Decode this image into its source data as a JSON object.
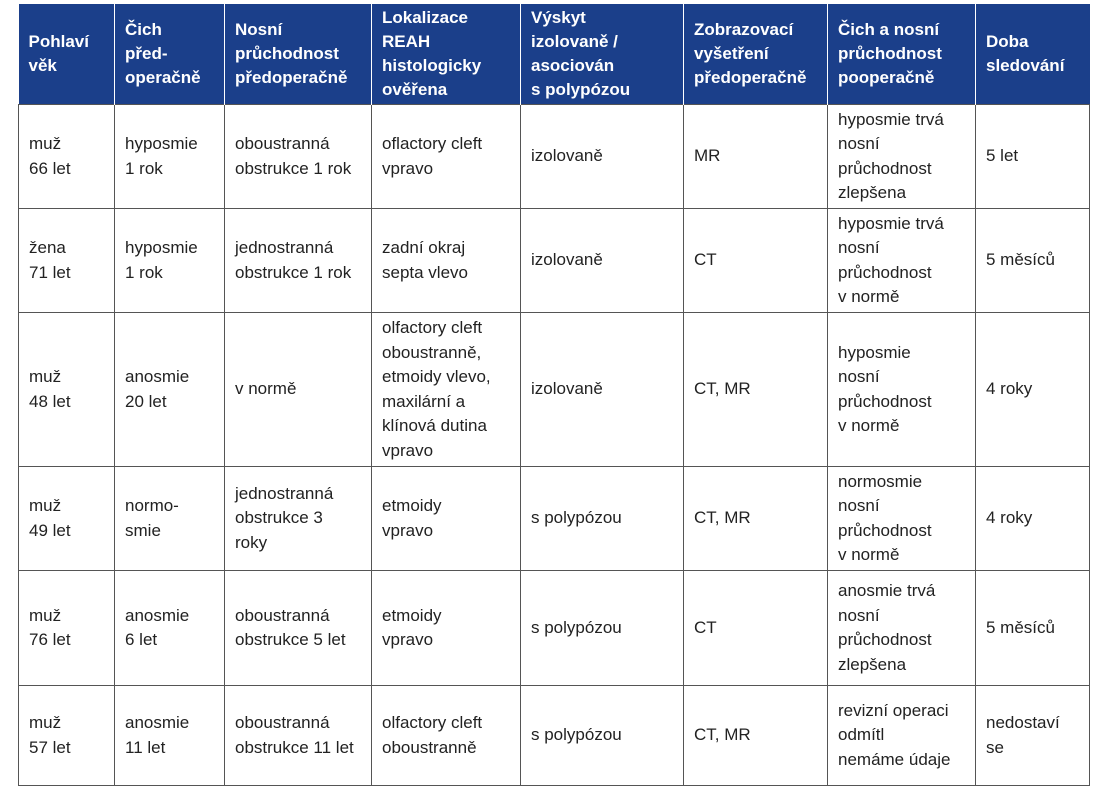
{
  "table": {
    "headers": [
      "Pohlaví\nvěk",
      "Čich\npřed-\noperačně",
      "Nosní\nprůchodnost\npředoperačně",
      "Lokalizace\nREAH\nhistologicky\nověřena",
      "Výskyt\nizolovaně /\nasociován\ns polypózou",
      "Zobrazovací\nvyšetření\npředoperačně",
      "Čich a nosní\nprůchodnost\npooperačně",
      "Doba\nsledování"
    ],
    "rows": [
      [
        "muž\n66 let",
        "hyposmie\n1 rok",
        "oboustranná\nobstrukce 1 rok",
        "oflactory cleft\nvpravo",
        "izolovaně",
        "MR",
        "hyposmie trvá\nnosní\nprůchodnost\nzlepšena",
        "5 let"
      ],
      [
        "žena\n71 let",
        "hyposmie\n1 rok",
        "jednostranná\nobstrukce 1 rok",
        "zadní okraj\nsepta vlevo",
        "izolovaně",
        "CT",
        "hyposmie trvá\nnosní\nprůchodnost\nv normě",
        "5 měsíců"
      ],
      [
        "muž\n48 let",
        "anosmie\n20 let",
        "v normě",
        "olfactory cleft\noboustranně,\netmoidy vlevo,\nmaxilární a\nklínová dutina\nvpravo",
        "izolovaně",
        "CT, MR",
        "hyposmie\nnosní\nprůchodnost\nv normě",
        "4 roky"
      ],
      [
        "muž\n49 let",
        "normo-\nsmie",
        "jednostranná\nobstrukce 3\nroky",
        "etmoidy\nvpravo",
        "s polypózou",
        "CT, MR",
        "normosmie\nnosní\nprůchodnost\nv normě",
        "4 roky"
      ],
      [
        "muž\n76 let",
        "anosmie\n6 let",
        "oboustranná\nobstrukce 5 let",
        "etmoidy\nvpravo",
        "s polypózou",
        "CT",
        "anosmie trvá\nnosní\nprůchodnost\nzlepšena",
        "5 měsíců"
      ],
      [
        "muž\n57 let",
        "anosmie\n11 let",
        "oboustranná\nobstrukce 11 let",
        "olfactory cleft\noboustranně",
        "s polypózou",
        "CT, MR",
        "revizní operaci\nodmítl\nnemáme údaje",
        "nedostaví\nse"
      ]
    ]
  }
}
